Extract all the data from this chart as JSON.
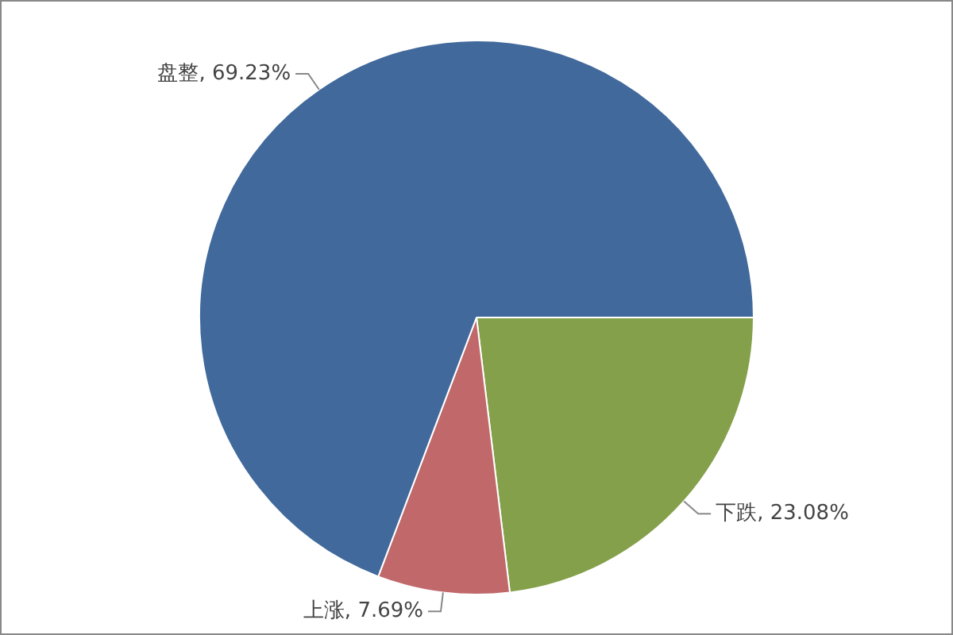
{
  "chart_data": {
    "type": "pie",
    "categories": [
      "下跌",
      "上涨",
      "盘整"
    ],
    "values": [
      23.08,
      7.69,
      69.23
    ],
    "colors": [
      "#84a04a",
      "#c0686a",
      "#41699c"
    ],
    "value_labels": [
      "23.08%",
      "7.69%",
      "69.23%"
    ],
    "legend": false
  }
}
